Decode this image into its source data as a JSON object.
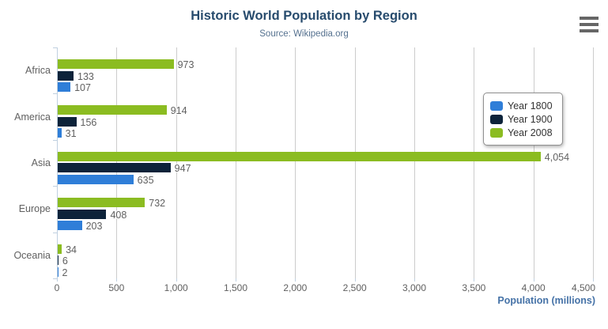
{
  "chart": {
    "menu_icon": "hamburger-icon"
  },
  "chart_data": {
    "type": "bar",
    "orientation": "horizontal",
    "title": "Historic World Population by Region",
    "subtitle": "Source: Wikipedia.org",
    "categories": [
      "Africa",
      "America",
      "Asia",
      "Europe",
      "Oceania"
    ],
    "series": [
      {
        "name": "Year 1800",
        "color": "#2f7ed8",
        "values": [
          107,
          31,
          635,
          203,
          2
        ]
      },
      {
        "name": "Year 1900",
        "color": "#0d233a",
        "values": [
          133,
          156,
          947,
          408,
          6
        ]
      },
      {
        "name": "Year 2008",
        "color": "#8bbc21",
        "values": [
          973,
          914,
          4054,
          732,
          34
        ]
      }
    ],
    "data_labels": [
      [
        "107",
        "31",
        "635",
        "203",
        "2"
      ],
      [
        "133",
        "156",
        "947",
        "408",
        "6"
      ],
      [
        "973",
        "914",
        "4,054",
        "732",
        "34"
      ]
    ],
    "xlabel": "Population (millions)",
    "value_axis": {
      "min": 0,
      "max": 4500,
      "tick_interval": 500,
      "tick_labels": [
        "0",
        "500",
        "1,000",
        "1,500",
        "2,000",
        "2,500",
        "3,000",
        "3,500",
        "4,000",
        "4,500"
      ]
    },
    "legend": {
      "position": "right-top-floating",
      "entries": [
        "Year 1800",
        "Year 1900",
        "Year 2008"
      ]
    },
    "grid": true,
    "colors": {
      "title": "#274b6d",
      "subtitle": "#55718f",
      "axis_title": "#4572a7",
      "tick_text": "#606060",
      "gridline": "#cccccc",
      "category_axis_line": "#c0d0e0"
    }
  }
}
